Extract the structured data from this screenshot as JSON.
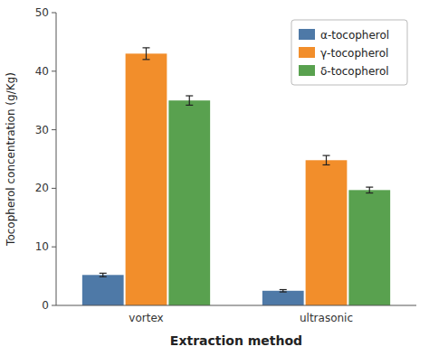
{
  "chart_data": {
    "type": "bar",
    "categories": [
      "vortex",
      "ultrasonic"
    ],
    "series": [
      {
        "name": "α-tocopherol",
        "values": [
          5.2,
          2.5
        ],
        "errors": [
          0.3,
          0.2
        ]
      },
      {
        "name": "γ-tocopherol",
        "values": [
          43.0,
          24.8
        ],
        "errors": [
          1.0,
          0.8
        ]
      },
      {
        "name": "δ-tocopherol",
        "values": [
          35.0,
          19.7
        ],
        "errors": [
          0.8,
          0.5
        ]
      }
    ],
    "xlabel": "Extraction method",
    "ylabel": "Tocopherol concentration (g/Kg)",
    "ylim": [
      0,
      50
    ],
    "yticks": [
      0,
      10,
      20,
      30,
      40,
      50
    ],
    "legend": "upper right",
    "grid": false
  }
}
